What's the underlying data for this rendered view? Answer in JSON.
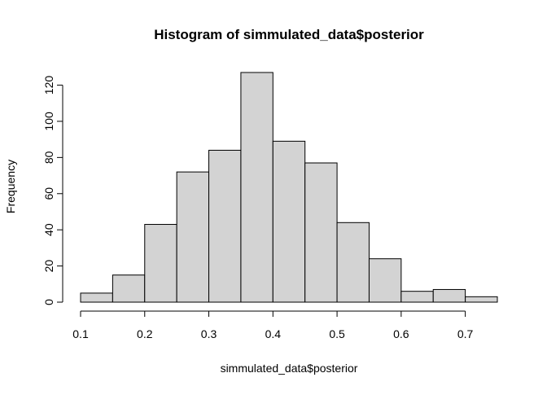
{
  "chart_data": {
    "type": "bar",
    "title": "Histogram of simmulated_data$posterior",
    "xlabel": "simmulated_data$posterior",
    "ylabel": "Frequency",
    "bin_edges": [
      0.1,
      0.15,
      0.2,
      0.25,
      0.3,
      0.35,
      0.4,
      0.45,
      0.5,
      0.55,
      0.6,
      0.65,
      0.7,
      0.75
    ],
    "values": [
      5,
      15,
      43,
      72,
      84,
      127,
      89,
      77,
      44,
      24,
      6,
      7,
      3
    ],
    "xlim": [
      0.1,
      0.75
    ],
    "ylim": [
      0,
      127
    ],
    "x_ticks": [
      0.1,
      0.2,
      0.3,
      0.4,
      0.5,
      0.6,
      0.7
    ],
    "x_tick_labels": [
      "0.1",
      "0.2",
      "0.3",
      "0.4",
      "0.5",
      "0.6",
      "0.7"
    ],
    "y_ticks": [
      0,
      20,
      40,
      60,
      80,
      100,
      120
    ],
    "y_tick_labels": [
      "0",
      "20",
      "40",
      "60",
      "80",
      "100",
      "120"
    ],
    "bar_fill": "#d3d3d3",
    "bar_stroke": "#000000",
    "grid": false,
    "legend": "none"
  }
}
